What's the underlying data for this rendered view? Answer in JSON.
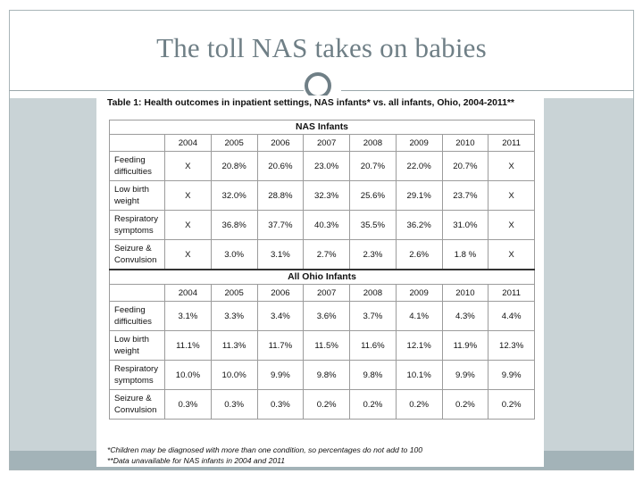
{
  "slide": {
    "title": "The toll NAS takes on babies"
  },
  "table": {
    "caption": "Table 1: Health outcomes in inpatient settings, NAS infants* vs. all infants, Ohio, 2004-2011**",
    "years": [
      "2004",
      "2005",
      "2006",
      "2007",
      "2008",
      "2009",
      "2010",
      "2011"
    ],
    "sections": [
      {
        "heading": "NAS Infants",
        "rows": [
          {
            "label": "Feeding difficulties",
            "values": [
              "X",
              "20.8%",
              "20.6%",
              "23.0%",
              "20.7%",
              "22.0%",
              "20.7%",
              "X"
            ]
          },
          {
            "label": "Low birth weight",
            "values": [
              "X",
              "32.0%",
              "28.8%",
              "32.3%",
              "25.6%",
              "29.1%",
              "23.7%",
              "X"
            ]
          },
          {
            "label": "Respiratory symptoms",
            "values": [
              "X",
              "36.8%",
              "37.7%",
              "40.3%",
              "35.5%",
              "36.2%",
              "31.0%",
              "X"
            ]
          },
          {
            "label": "Seizure & Convulsion",
            "values": [
              "X",
              "3.0%",
              "3.1%",
              "2.7%",
              "2.3%",
              "2.6%",
              "1.8 %",
              "X"
            ]
          }
        ]
      },
      {
        "heading": "All Ohio Infants",
        "rows": [
          {
            "label": "Feeding difficulties",
            "values": [
              "3.1%",
              "3.3%",
              "3.4%",
              "3.6%",
              "3.7%",
              "4.1%",
              "4.3%",
              "4.4%"
            ]
          },
          {
            "label": "Low birth weight",
            "values": [
              "11.1%",
              "11.3%",
              "11.7%",
              "11.5%",
              "11.6%",
              "12.1%",
              "11.9%",
              "12.3%"
            ]
          },
          {
            "label": "Respiratory symptoms",
            "values": [
              "10.0%",
              "10.0%",
              "9.9%",
              "9.8%",
              "9.8%",
              "10.1%",
              "9.9%",
              "9.9%"
            ]
          },
          {
            "label": "Seizure & Convulsion",
            "values": [
              "0.3%",
              "0.3%",
              "0.3%",
              "0.2%",
              "0.2%",
              "0.2%",
              "0.2%",
              "0.2%"
            ]
          }
        ]
      }
    ],
    "footnotes": [
      "*Children may be diagnosed with more than one condition, so percentages do not add to 100",
      "**Data unavailable for NAS infants in 2004 and 2011"
    ]
  }
}
